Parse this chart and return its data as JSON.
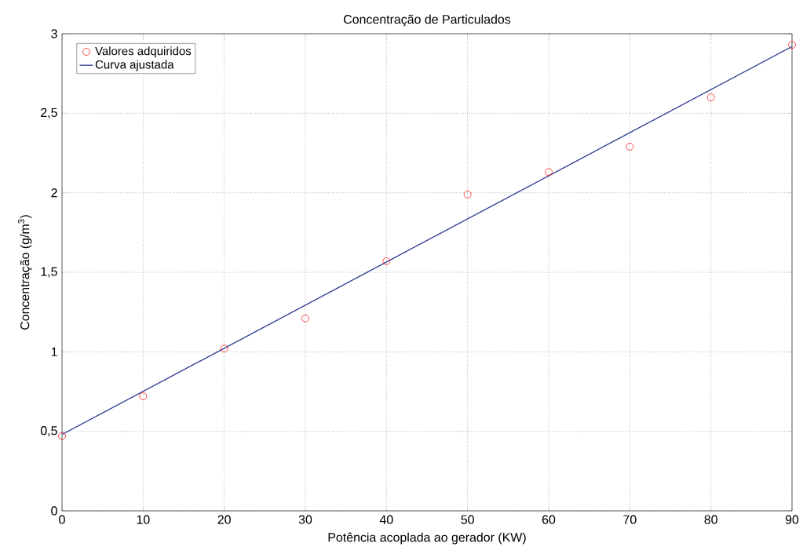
{
  "chart_data": {
    "type": "scatter",
    "title": "Concentração de Particulados",
    "xlabel": "Potência acoplada ao gerador (KW)",
    "ylabel": "Concentração (g/m$^{3}$)",
    "series": [
      {
        "name": "Valores adquiridos",
        "color": "#ff0000",
        "marker": "circle",
        "x": [
          0,
          10,
          20,
          30,
          40,
          50,
          60,
          70,
          80,
          90
        ],
        "values": [
          0.47,
          0.72,
          1.02,
          1.21,
          1.57,
          1.99,
          2.13,
          2.29,
          2.6,
          2.93
        ]
      },
      {
        "type": "line",
        "name": "Curva ajustada",
        "color": "#2b3990",
        "marker": "none",
        "line_style": "solid",
        "x": [
          0,
          90
        ],
        "values": [
          0.48,
          2.92
        ]
      }
    ],
    "xlim": [
      0,
      90
    ],
    "ylim": [
      0,
      3
    ],
    "xticks": [
      0,
      10,
      20,
      30,
      40,
      50,
      60,
      70,
      80,
      90
    ],
    "yticks": [
      0,
      {
        "value": 0.5,
        "label": "0,5"
      },
      1,
      {
        "value": 1.5,
        "label": "1,5"
      },
      2,
      {
        "value": 2.5,
        "label": "2,5"
      },
      3
    ],
    "grid": true,
    "legend": "top left"
  }
}
